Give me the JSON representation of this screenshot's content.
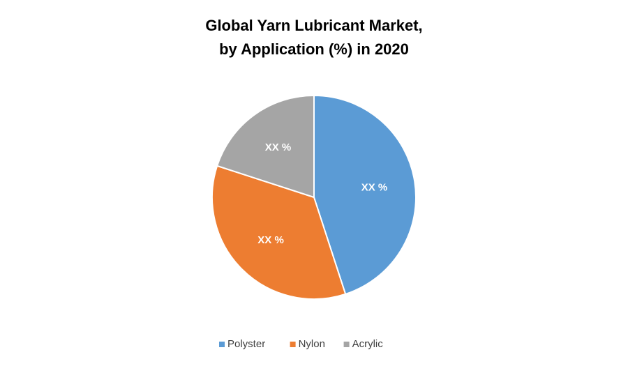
{
  "chart_data": {
    "type": "pie",
    "title": [
      "Global Yarn Lubricant Market,",
      "by Application (%) in 2020"
    ],
    "categories": [
      "Polyster",
      "Nylon",
      "Acrylic"
    ],
    "values": [
      45,
      35,
      20
    ],
    "value_labels": [
      "XX %",
      "XX %",
      "XX %"
    ],
    "colors": [
      "#5b9bd5",
      "#ed7d31",
      "#a5a5a5"
    ],
    "legend": "bottom"
  }
}
